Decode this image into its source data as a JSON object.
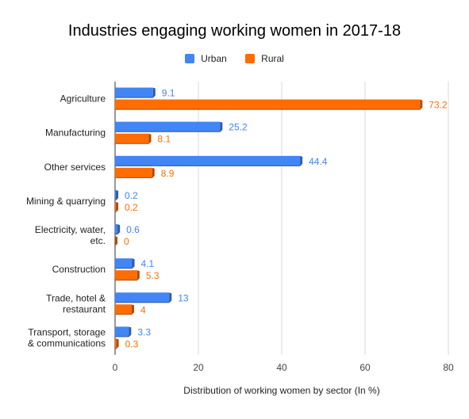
{
  "chart_data": {
    "type": "bar",
    "orientation": "horizontal",
    "title": "Industries engaging working women in 2017-18",
    "xlabel": "Distribution of working women by sector (In %)",
    "ylabel": "",
    "xlim": [
      0,
      80
    ],
    "x_ticks": [
      "0",
      "20",
      "40",
      "60",
      "80"
    ],
    "grid": "vertical",
    "legend_position": "top",
    "categories": [
      [
        "Agriculture"
      ],
      [
        "Manufacturing"
      ],
      [
        "Other services"
      ],
      [
        "Mining & quarrying"
      ],
      [
        "Electricity, water,",
        "etc."
      ],
      [
        "Construction"
      ],
      [
        "Trade, hotel &",
        "restaurant"
      ],
      [
        "Transport, storage",
        "& communications"
      ]
    ],
    "series": [
      {
        "name": "Urban",
        "color": "#4285F4",
        "side_color": "#2A5AAE",
        "values": [
          9.1,
          25.2,
          44.4,
          0.2,
          0.6,
          4.1,
          13,
          3.3
        ],
        "labels": [
          "9.1",
          "25.2",
          "44.4",
          "0.2",
          "0.6",
          "4.1",
          "13",
          "3.3"
        ]
      },
      {
        "name": "Rural",
        "color": "#FF6D01",
        "side_color": "#B34A00",
        "values": [
          73.2,
          8.1,
          8.9,
          0.2,
          0,
          5.3,
          4,
          0.3
        ],
        "labels": [
          "73.2",
          "8.1",
          "8.9",
          "0.2",
          "0",
          "5.3",
          "4",
          "0.3"
        ]
      }
    ]
  }
}
